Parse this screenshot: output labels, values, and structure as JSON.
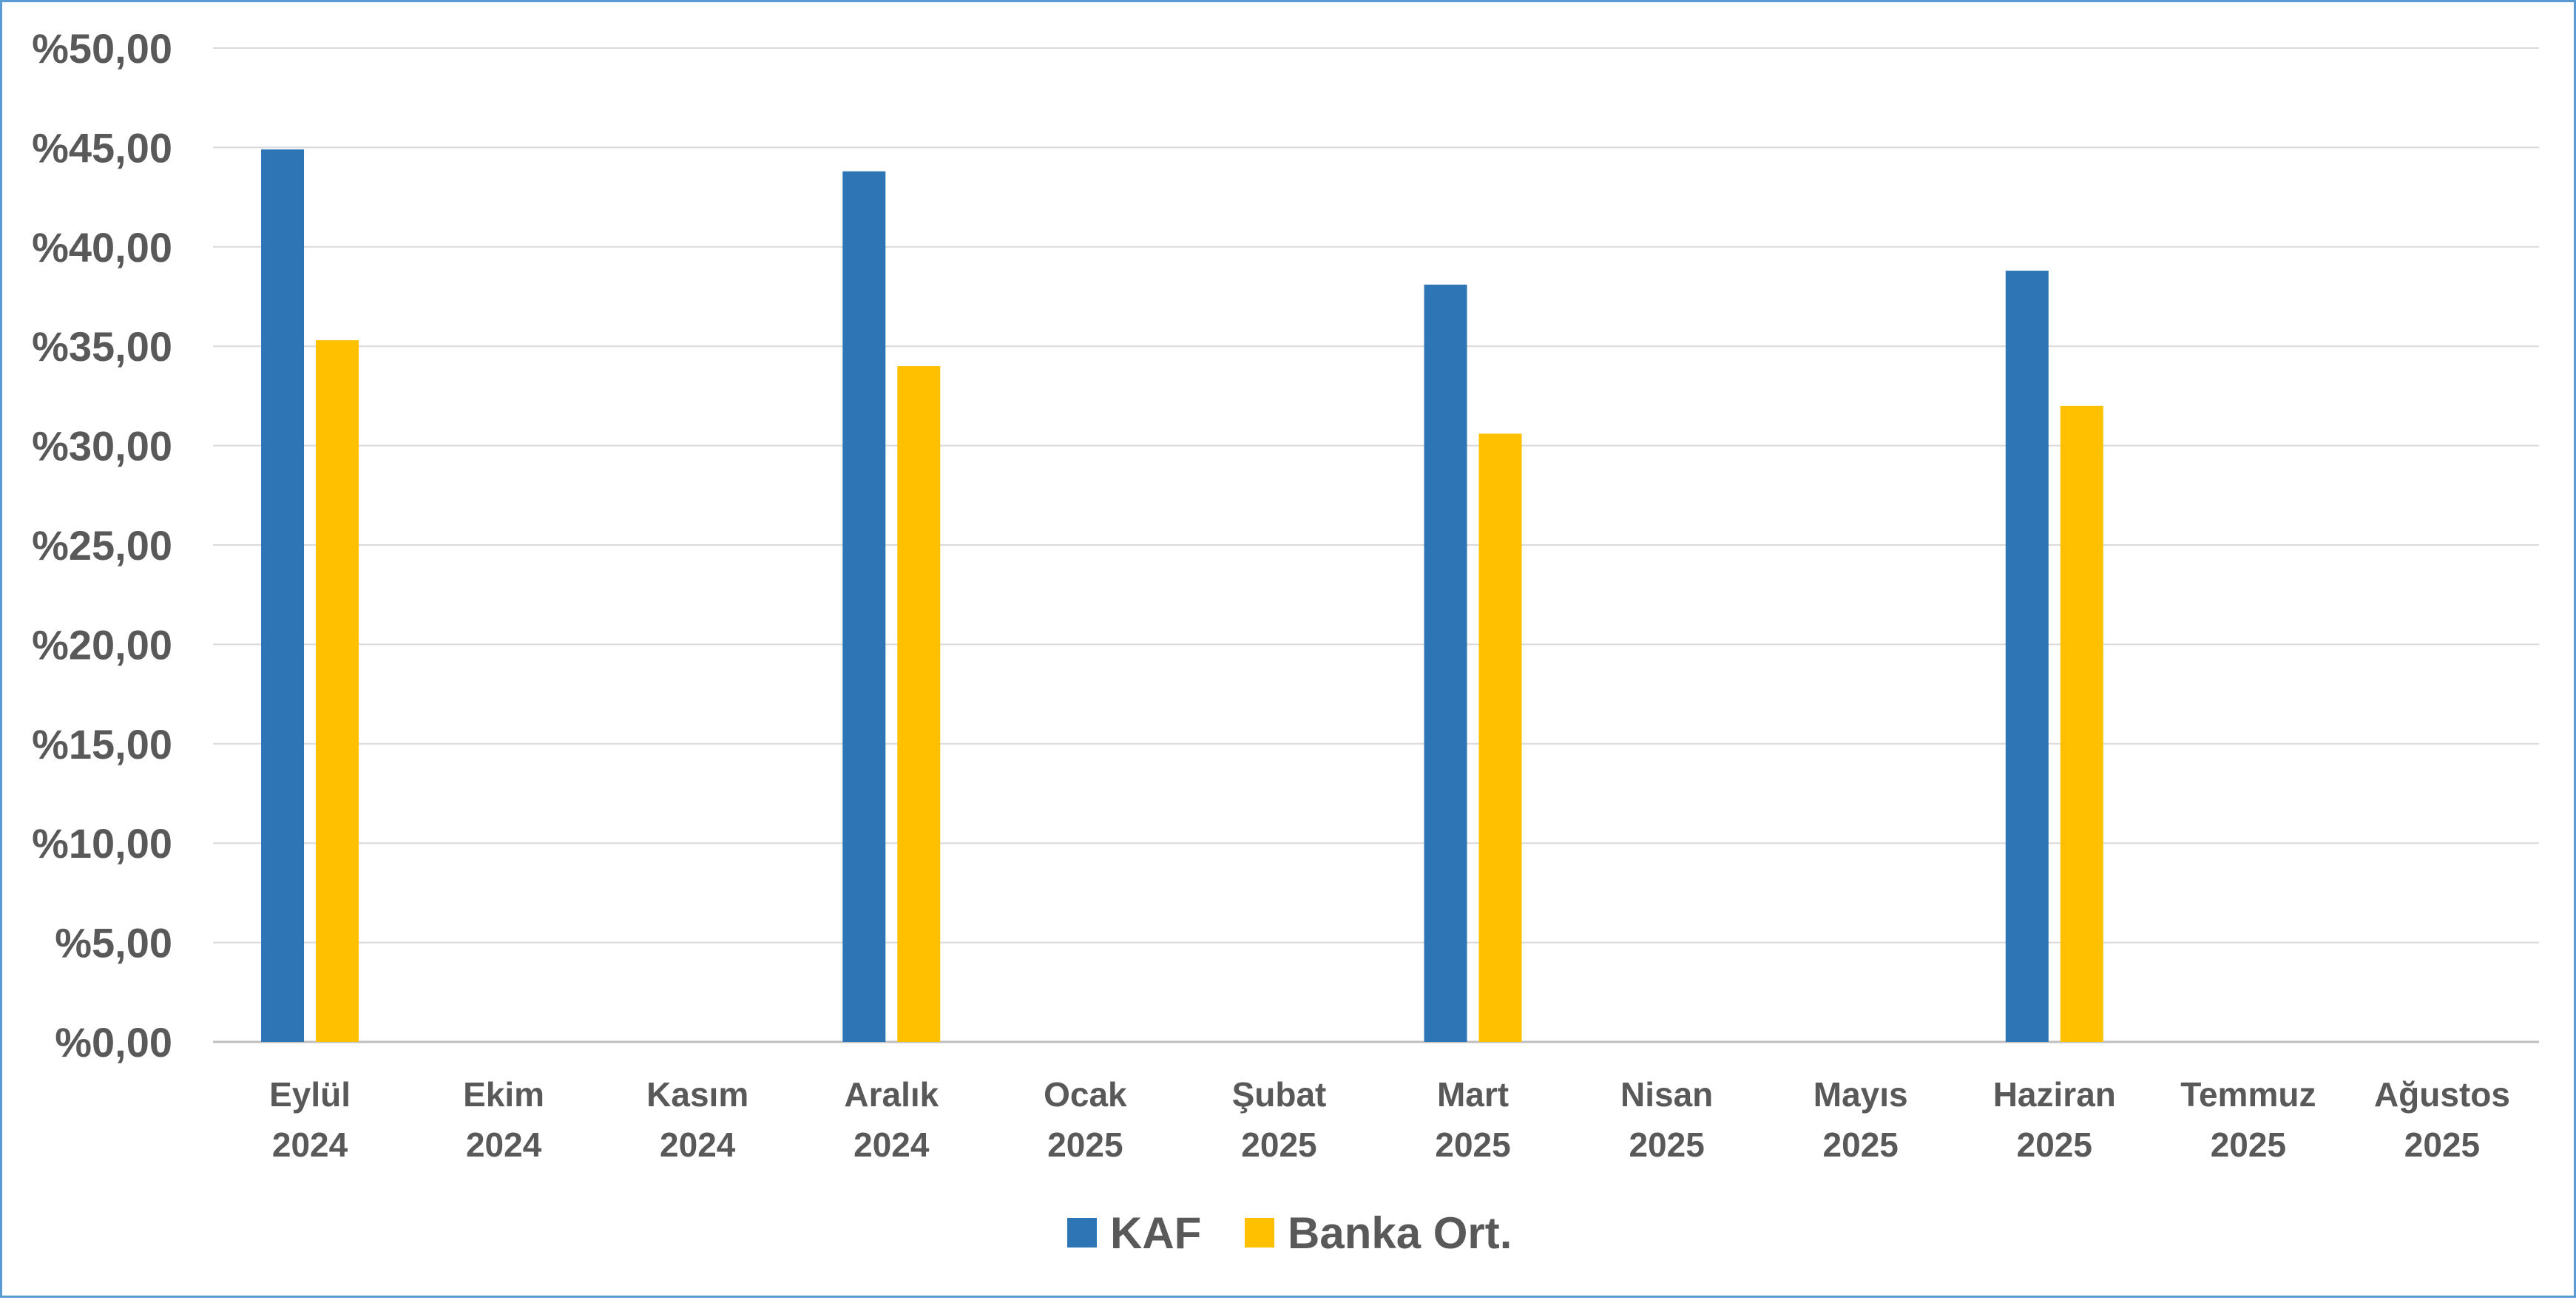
{
  "chart_data": {
    "type": "bar",
    "title": "",
    "xlabel": "",
    "ylabel": "",
    "ylim": [
      0,
      50
    ],
    "y_ticks": [
      "%0,00",
      "%5,00",
      "%10,00",
      "%15,00",
      "%20,00",
      "%25,00",
      "%30,00",
      "%35,00",
      "%40,00",
      "%45,00",
      "%50,00"
    ],
    "y_tick_values": [
      0,
      5,
      10,
      15,
      20,
      25,
      30,
      35,
      40,
      45,
      50
    ],
    "grid": true,
    "legend_position": "bottom-center",
    "categories": [
      [
        "Eylül",
        "2024"
      ],
      [
        "Ekim",
        "2024"
      ],
      [
        "Kasım",
        "2024"
      ],
      [
        "Aralık",
        "2024"
      ],
      [
        "Ocak",
        "2025"
      ],
      [
        "Şubat",
        "2025"
      ],
      [
        "Mart",
        "2025"
      ],
      [
        "Nisan",
        "2025"
      ],
      [
        "Mayıs",
        "2025"
      ],
      [
        "Haziran",
        "2025"
      ],
      [
        "Temmuz",
        "2025"
      ],
      [
        "Ağustos",
        "2025"
      ]
    ],
    "series": [
      {
        "name": "KAF",
        "color": "#2e75b6",
        "values": [
          44.9,
          null,
          null,
          43.8,
          null,
          null,
          38.1,
          null,
          null,
          38.8,
          null,
          null
        ]
      },
      {
        "name": "Banka Ort.",
        "color": "#ffc000",
        "values": [
          35.3,
          null,
          null,
          34.0,
          null,
          null,
          30.6,
          null,
          null,
          32.0,
          null,
          null
        ]
      }
    ]
  }
}
